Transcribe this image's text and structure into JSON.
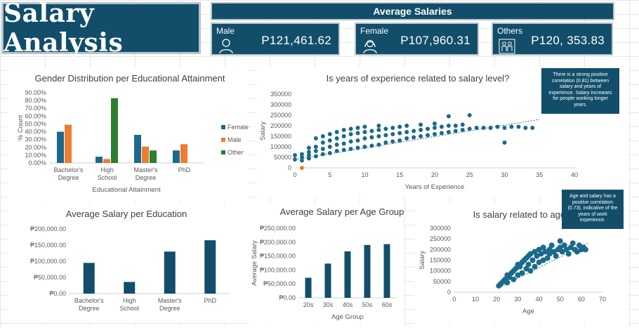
{
  "dashboard_title": "Salary Analysis",
  "avg_header": "Average Salaries",
  "kpis": {
    "male": {
      "label": "Male",
      "value": "P121,461.62",
      "icon": "person-icon"
    },
    "female": {
      "label": "Female",
      "value": "P107,960.31",
      "icon": "person-female-icon"
    },
    "others": {
      "label": "Others",
      "value": "P120, 353.83",
      "icon": "people-icon"
    }
  },
  "insights": {
    "experience": "There is a strong positive correlation (0.81) between salary and years of experience. Salary increases for people working longer years.",
    "age": "Age and salary has a positive correlation (0.73), indicative of the years of work experience."
  },
  "colors": {
    "brand": "#124e6a",
    "female": "#1b6a8b",
    "male": "#ed7d31",
    "other": "#2e7d32",
    "trend": "#2b6f94"
  },
  "chart_data": [
    {
      "id": "gender",
      "type": "bar",
      "title": "Gender Distribution per Educational Attainment",
      "xlabel": "Educational Attainment",
      "ylabel": "% Count",
      "categories": [
        "Bachelor's Degree",
        "High School",
        "Master's Degree",
        "PhD"
      ],
      "series": [
        {
          "name": "Female",
          "values": [
            0.4,
            0.08,
            0.36,
            0.16
          ]
        },
        {
          "name": "Male",
          "values": [
            0.49,
            0.05,
            0.21,
            0.24
          ]
        },
        {
          "name": "Other",
          "values": [
            0,
            0.83,
            0.16,
            0
          ]
        }
      ],
      "ylim": [
        0,
        0.9
      ],
      "yticks": [
        "0.00%",
        "10.00%",
        "20.00%",
        "30.00%",
        "40.00%",
        "50.00%",
        "60.00%",
        "70.00%",
        "80.00%",
        "90.00%"
      ],
      "legend": "right"
    },
    {
      "id": "experience",
      "type": "scatter",
      "title": "Is years of experience related to salary level?",
      "xlabel": "Years of Experience",
      "ylabel": "Salary",
      "xlim": [
        0,
        40
      ],
      "ylim": [
        0,
        350000
      ],
      "xticks": [
        "0",
        "5",
        "10",
        "15",
        "20",
        "25",
        "30",
        "35",
        "40"
      ],
      "yticks": [
        "0",
        "50000",
        "100000",
        "150000",
        "200000",
        "250000",
        "300000",
        "350000"
      ],
      "trendline": {
        "from": [
          0,
          40000
        ],
        "to": [
          35,
          230000
        ]
      },
      "points": [
        [
          0,
          40000
        ],
        [
          0,
          60000
        ],
        [
          1,
          35000
        ],
        [
          1,
          50000
        ],
        [
          1,
          65000
        ],
        [
          2,
          45000
        ],
        [
          2,
          60000
        ],
        [
          2,
          75000
        ],
        [
          2,
          95000
        ],
        [
          3,
          55000
        ],
        [
          3,
          80000
        ],
        [
          3,
          100000
        ],
        [
          3,
          140000
        ],
        [
          4,
          65000
        ],
        [
          4,
          90000
        ],
        [
          4,
          120000
        ],
        [
          4,
          150000
        ],
        [
          5,
          70000
        ],
        [
          5,
          100000
        ],
        [
          5,
          130000
        ],
        [
          5,
          160000
        ],
        [
          6,
          80000
        ],
        [
          6,
          110000
        ],
        [
          6,
          140000
        ],
        [
          6,
          170000
        ],
        [
          7,
          85000
        ],
        [
          7,
          115000
        ],
        [
          7,
          150000
        ],
        [
          7,
          180000
        ],
        [
          8,
          90000
        ],
        [
          8,
          125000
        ],
        [
          8,
          160000
        ],
        [
          8,
          185000
        ],
        [
          9,
          95000
        ],
        [
          9,
          130000
        ],
        [
          9,
          165000
        ],
        [
          9,
          190000
        ],
        [
          10,
          100000
        ],
        [
          10,
          140000
        ],
        [
          10,
          170000
        ],
        [
          10,
          195000
        ],
        [
          11,
          105000
        ],
        [
          11,
          145000
        ],
        [
          11,
          175000
        ],
        [
          12,
          110000
        ],
        [
          12,
          150000
        ],
        [
          12,
          180000
        ],
        [
          12,
          200000
        ],
        [
          13,
          120000
        ],
        [
          13,
          155000
        ],
        [
          13,
          185000
        ],
        [
          14,
          125000
        ],
        [
          14,
          160000
        ],
        [
          14,
          190000
        ],
        [
          15,
          130000
        ],
        [
          15,
          165000
        ],
        [
          15,
          195000
        ],
        [
          16,
          140000
        ],
        [
          16,
          170000
        ],
        [
          16,
          200000
        ],
        [
          17,
          145000
        ],
        [
          17,
          175000
        ],
        [
          18,
          150000
        ],
        [
          18,
          180000
        ],
        [
          18,
          205000
        ],
        [
          19,
          155000
        ],
        [
          19,
          185000
        ],
        [
          20,
          160000
        ],
        [
          20,
          190000
        ],
        [
          20,
          210000
        ],
        [
          21,
          165000
        ],
        [
          21,
          195000
        ],
        [
          22,
          170000
        ],
        [
          22,
          200000
        ],
        [
          22,
          245000
        ],
        [
          23,
          175000
        ],
        [
          23,
          200000
        ],
        [
          24,
          180000
        ],
        [
          24,
          205000
        ],
        [
          25,
          185000
        ],
        [
          25,
          250000
        ],
        [
          26,
          190000
        ],
        [
          27,
          190000
        ],
        [
          28,
          190000
        ],
        [
          29,
          195000
        ],
        [
          30,
          190000
        ],
        [
          30,
          120000
        ],
        [
          31,
          195000
        ],
        [
          32,
          195000
        ],
        [
          33,
          190000
        ],
        [
          34,
          190000
        ]
      ],
      "highlight": [
        [
          1,
          0
        ]
      ]
    },
    {
      "id": "education",
      "type": "bar",
      "title": "Average Salary per Education",
      "categories": [
        "Bachelor's Degree",
        "High School",
        "Master's Degree",
        "PhD"
      ],
      "values": [
        95000,
        36000,
        130000,
        165000
      ],
      "ylim": [
        0,
        200000
      ],
      "yticks": [
        "₱0.00",
        "₱50,000.00",
        "₱100,000.00",
        "₱150,000.00",
        "₱200,000.00"
      ]
    },
    {
      "id": "agegroup",
      "type": "bar",
      "title": "Average Salary per Age Group",
      "xlabel": "Age Group",
      "ylabel": "Average Salary",
      "categories": [
        "20s",
        "30s",
        "40s",
        "50s",
        "60s"
      ],
      "values": [
        72000,
        123000,
        167000,
        190000,
        193000
      ],
      "ylim": [
        0,
        250000
      ],
      "yticks": [
        "₱0.00",
        "₱50,000.00",
        "₱100,000.00",
        "₱150,000.00",
        "₱200,000.00",
        "₱250,000.00"
      ]
    },
    {
      "id": "age",
      "type": "scatter",
      "title": "Is salary related to age?",
      "xlabel": "Age",
      "ylabel": "Salary",
      "xlim": [
        0,
        70
      ],
      "ylim": [
        0,
        300000
      ],
      "xticks": [
        "0",
        "10",
        "20",
        "30",
        "40",
        "50",
        "60",
        "70"
      ],
      "yticks": [
        "0",
        "50000",
        "100000",
        "150000",
        "200000",
        "250000",
        "300000"
      ],
      "trendline": {
        "from": [
          21,
          20000
        ],
        "to": [
          63,
          230000
        ]
      },
      "points": [
        [
          21,
          30000
        ],
        [
          22,
          40000
        ],
        [
          23,
          50000
        ],
        [
          24,
          60000
        ],
        [
          25,
          45000
        ],
        [
          25,
          80000
        ],
        [
          26,
          70000
        ],
        [
          27,
          90000
        ],
        [
          28,
          100000
        ],
        [
          28,
          60000
        ],
        [
          29,
          110000
        ],
        [
          30,
          80000
        ],
        [
          30,
          130000
        ],
        [
          31,
          120000
        ],
        [
          32,
          140000
        ],
        [
          32,
          90000
        ],
        [
          33,
          150000
        ],
        [
          34,
          110000
        ],
        [
          34,
          160000
        ],
        [
          35,
          170000
        ],
        [
          35,
          130000
        ],
        [
          36,
          180000
        ],
        [
          36,
          100000
        ],
        [
          37,
          150000
        ],
        [
          38,
          190000
        ],
        [
          38,
          120000
        ],
        [
          39,
          170000
        ],
        [
          40,
          200000
        ],
        [
          40,
          140000
        ],
        [
          41,
          180000
        ],
        [
          42,
          210000
        ],
        [
          42,
          150000
        ],
        [
          43,
          190000
        ],
        [
          44,
          160000
        ],
        [
          45,
          200000
        ],
        [
          45,
          180000
        ],
        [
          46,
          220000
        ],
        [
          47,
          190000
        ],
        [
          48,
          170000
        ],
        [
          49,
          200000
        ],
        [
          50,
          210000
        ],
        [
          50,
          240000
        ],
        [
          51,
          190000
        ],
        [
          52,
          220000
        ],
        [
          53,
          200000
        ],
        [
          54,
          180000
        ],
        [
          55,
          210000
        ],
        [
          56,
          230000
        ],
        [
          57,
          200000
        ],
        [
          58,
          190000
        ],
        [
          59,
          220000
        ],
        [
          60,
          200000
        ],
        [
          61,
          210000
        ],
        [
          62,
          200000
        ]
      ]
    }
  ]
}
